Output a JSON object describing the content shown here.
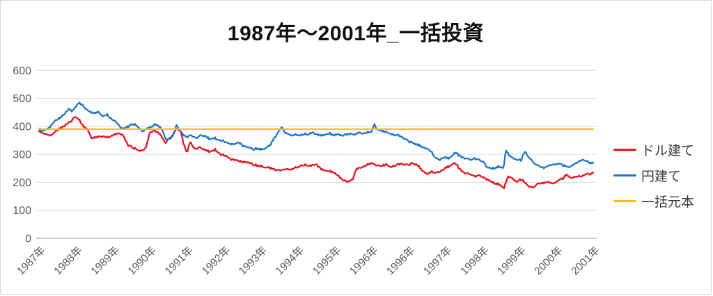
{
  "chart": {
    "background": "#ffffff",
    "border_color": "#d6d6d6",
    "gridline_color": "#d9d9d9",
    "axis_line_color": "#a6a6a6",
    "tick_label_color": "#595959",
    "title_color": "#111111",
    "legend_text_color": "#3a3a3a"
  },
  "chart_data": {
    "type": "line",
    "title": "1987年〜2001年_一括投資",
    "xlabel": "",
    "ylabel": "",
    "ylim": [
      0,
      600
    ],
    "y_ticks": [
      0,
      100,
      200,
      300,
      400,
      500,
      600
    ],
    "grid": "horizontal",
    "legend_position": "right",
    "x_tick_labels": [
      "1987年",
      "1988年",
      "1989年",
      "1990年",
      "1991年",
      "1992年",
      "1993年",
      "1994年",
      "1995年",
      "1996年",
      "1996年",
      "1997年",
      "1998年",
      "1999年",
      "2000年",
      "2001年"
    ],
    "series": [
      {
        "id": "dollar",
        "name": "ドル建て",
        "color": "#e8141e",
        "noise": 4.5,
        "points": [
          [
            0,
            383
          ],
          [
            0.15,
            374
          ],
          [
            0.32,
            368
          ],
          [
            0.47,
            386
          ],
          [
            0.66,
            400
          ],
          [
            0.85,
            416
          ],
          [
            1,
            436
          ],
          [
            1.09,
            424
          ],
          [
            1.19,
            401
          ],
          [
            1.32,
            391
          ],
          [
            1.43,
            358
          ],
          [
            1.57,
            362
          ],
          [
            1.7,
            366
          ],
          [
            1.83,
            359
          ],
          [
            1.98,
            368
          ],
          [
            2.13,
            376
          ],
          [
            2.26,
            371
          ],
          [
            2.4,
            333
          ],
          [
            2.55,
            325
          ],
          [
            2.74,
            312
          ],
          [
            2.89,
            322
          ],
          [
            3,
            378
          ],
          [
            3.11,
            386
          ],
          [
            3.26,
            374
          ],
          [
            3.43,
            341
          ],
          [
            3.57,
            362
          ],
          [
            3.72,
            390
          ],
          [
            3.83,
            382
          ],
          [
            3.91,
            340
          ],
          [
            4,
            305
          ],
          [
            4.09,
            344
          ],
          [
            4.21,
            320
          ],
          [
            4.34,
            326
          ],
          [
            4.47,
            317
          ],
          [
            4.62,
            309
          ],
          [
            4.77,
            317
          ],
          [
            4.91,
            299
          ],
          [
            5.06,
            295
          ],
          [
            5.19,
            283
          ],
          [
            5.34,
            281
          ],
          [
            5.47,
            274
          ],
          [
            5.66,
            270
          ],
          [
            5.85,
            262
          ],
          [
            6.04,
            257
          ],
          [
            6.23,
            252
          ],
          [
            6.42,
            246
          ],
          [
            6.51,
            240
          ],
          [
            6.66,
            249
          ],
          [
            6.79,
            244
          ],
          [
            6.92,
            251
          ],
          [
            7.08,
            259
          ],
          [
            7.21,
            263
          ],
          [
            7.36,
            257
          ],
          [
            7.49,
            266
          ],
          [
            7.64,
            246
          ],
          [
            7.79,
            241
          ],
          [
            7.96,
            236
          ],
          [
            8.11,
            221
          ],
          [
            8.25,
            206
          ],
          [
            8.36,
            202
          ],
          [
            8.49,
            211
          ],
          [
            8.58,
            247
          ],
          [
            8.72,
            252
          ],
          [
            8.85,
            261
          ],
          [
            9,
            272
          ],
          [
            9.09,
            263
          ],
          [
            9.25,
            258
          ],
          [
            9.4,
            263
          ],
          [
            9.53,
            257
          ],
          [
            9.68,
            262
          ],
          [
            9.81,
            266
          ],
          [
            9.96,
            261
          ],
          [
            10.09,
            268
          ],
          [
            10.25,
            262
          ],
          [
            10.38,
            241
          ],
          [
            10.51,
            228
          ],
          [
            10.62,
            238
          ],
          [
            10.75,
            234
          ],
          [
            10.89,
            241
          ],
          [
            11.04,
            254
          ],
          [
            11.15,
            262
          ],
          [
            11.26,
            271
          ],
          [
            11.38,
            247
          ],
          [
            11.51,
            236
          ],
          [
            11.64,
            229
          ],
          [
            11.79,
            222
          ],
          [
            11.94,
            226
          ],
          [
            12.08,
            214
          ],
          [
            12.21,
            204
          ],
          [
            12.36,
            196
          ],
          [
            12.47,
            192
          ],
          [
            12.58,
            177
          ],
          [
            12.68,
            221
          ],
          [
            12.79,
            214
          ],
          [
            12.92,
            204
          ],
          [
            13.06,
            211
          ],
          [
            13.17,
            197
          ],
          [
            13.26,
            184
          ],
          [
            13.36,
            180
          ],
          [
            13.49,
            194
          ],
          [
            13.64,
            199
          ],
          [
            13.77,
            201
          ],
          [
            13.91,
            195
          ],
          [
            14.06,
            206
          ],
          [
            14.17,
            213
          ],
          [
            14.28,
            229
          ],
          [
            14.4,
            216
          ],
          [
            14.53,
            219
          ],
          [
            14.66,
            223
          ],
          [
            14.77,
            226
          ],
          [
            14.91,
            229
          ],
          [
            15,
            236
          ]
        ]
      },
      {
        "id": "yen",
        "name": "円建て",
        "color": "#1f76c2",
        "noise": 4.5,
        "points": [
          [
            0,
            390
          ],
          [
            0.13,
            386
          ],
          [
            0.28,
            396
          ],
          [
            0.43,
            421
          ],
          [
            0.57,
            431
          ],
          [
            0.7,
            446
          ],
          [
            0.81,
            461
          ],
          [
            0.92,
            454
          ],
          [
            1.06,
            486
          ],
          [
            1.15,
            479
          ],
          [
            1.26,
            464
          ],
          [
            1.38,
            455
          ],
          [
            1.49,
            446
          ],
          [
            1.6,
            452
          ],
          [
            1.74,
            436
          ],
          [
            1.85,
            441
          ],
          [
            1.98,
            425
          ],
          [
            2.09,
            417
          ],
          [
            2.21,
            396
          ],
          [
            2.3,
            391
          ],
          [
            2.42,
            399
          ],
          [
            2.55,
            411
          ],
          [
            2.66,
            401
          ],
          [
            2.79,
            383
          ],
          [
            2.92,
            391
          ],
          [
            3.04,
            399
          ],
          [
            3.15,
            407
          ],
          [
            3.26,
            399
          ],
          [
            3.36,
            381
          ],
          [
            3.45,
            349
          ],
          [
            3.55,
            356
          ],
          [
            3.64,
            371
          ],
          [
            3.72,
            404
          ],
          [
            3.79,
            389
          ],
          [
            3.89,
            371
          ],
          [
            4,
            362
          ],
          [
            4.11,
            368
          ],
          [
            4.25,
            359
          ],
          [
            4.38,
            369
          ],
          [
            4.51,
            364
          ],
          [
            4.62,
            354
          ],
          [
            4.75,
            359
          ],
          [
            4.89,
            349
          ],
          [
            5,
            347
          ],
          [
            5.13,
            339
          ],
          [
            5.26,
            337
          ],
          [
            5.4,
            344
          ],
          [
            5.53,
            329
          ],
          [
            5.66,
            324
          ],
          [
            5.79,
            319
          ],
          [
            5.91,
            321
          ],
          [
            6.02,
            317
          ],
          [
            6.13,
            324
          ],
          [
            6.25,
            331
          ],
          [
            6.36,
            359
          ],
          [
            6.47,
            377
          ],
          [
            6.57,
            397
          ],
          [
            6.66,
            379
          ],
          [
            6.75,
            371
          ],
          [
            6.85,
            367
          ],
          [
            6.96,
            371
          ],
          [
            7.08,
            367
          ],
          [
            7.19,
            374
          ],
          [
            7.3,
            371
          ],
          [
            7.42,
            377
          ],
          [
            7.53,
            371
          ],
          [
            7.64,
            367
          ],
          [
            7.75,
            371
          ],
          [
            7.87,
            374
          ],
          [
            7.98,
            367
          ],
          [
            8.09,
            371
          ],
          [
            8.21,
            367
          ],
          [
            8.32,
            371
          ],
          [
            8.43,
            374
          ],
          [
            8.55,
            371
          ],
          [
            8.66,
            377
          ],
          [
            8.77,
            374
          ],
          [
            8.89,
            379
          ],
          [
            9,
            384
          ],
          [
            9.08,
            407
          ],
          [
            9.15,
            389
          ],
          [
            9.26,
            384
          ],
          [
            9.38,
            379
          ],
          [
            9.49,
            377
          ],
          [
            9.6,
            371
          ],
          [
            9.72,
            367
          ],
          [
            9.83,
            361
          ],
          [
            9.94,
            351
          ],
          [
            10.06,
            344
          ],
          [
            10.17,
            337
          ],
          [
            10.28,
            334
          ],
          [
            10.4,
            324
          ],
          [
            10.51,
            319
          ],
          [
            10.62,
            309
          ],
          [
            10.74,
            286
          ],
          [
            10.85,
            281
          ],
          [
            10.96,
            289
          ],
          [
            11.08,
            286
          ],
          [
            11.19,
            296
          ],
          [
            11.26,
            309
          ],
          [
            11.36,
            296
          ],
          [
            11.45,
            291
          ],
          [
            11.57,
            286
          ],
          [
            11.68,
            279
          ],
          [
            11.79,
            286
          ],
          [
            11.91,
            281
          ],
          [
            12.02,
            276
          ],
          [
            12.13,
            253
          ],
          [
            12.25,
            249
          ],
          [
            12.36,
            253
          ],
          [
            12.47,
            256
          ],
          [
            12.57,
            249
          ],
          [
            12.64,
            319
          ],
          [
            12.72,
            296
          ],
          [
            12.81,
            286
          ],
          [
            12.92,
            283
          ],
          [
            13.04,
            279
          ],
          [
            13.15,
            311
          ],
          [
            13.25,
            289
          ],
          [
            13.34,
            276
          ],
          [
            13.45,
            263
          ],
          [
            13.57,
            256
          ],
          [
            13.68,
            253
          ],
          [
            13.79,
            259
          ],
          [
            13.91,
            263
          ],
          [
            14.02,
            266
          ],
          [
            14.13,
            263
          ],
          [
            14.25,
            259
          ],
          [
            14.36,
            256
          ],
          [
            14.47,
            263
          ],
          [
            14.58,
            271
          ],
          [
            14.7,
            283
          ],
          [
            14.81,
            273
          ],
          [
            14.92,
            269
          ],
          [
            15,
            271
          ]
        ]
      },
      {
        "id": "principal",
        "name": "一括元本",
        "color": "#ffc000",
        "noise": 0,
        "points": [
          [
            0,
            390
          ],
          [
            15,
            390
          ]
        ]
      }
    ]
  }
}
